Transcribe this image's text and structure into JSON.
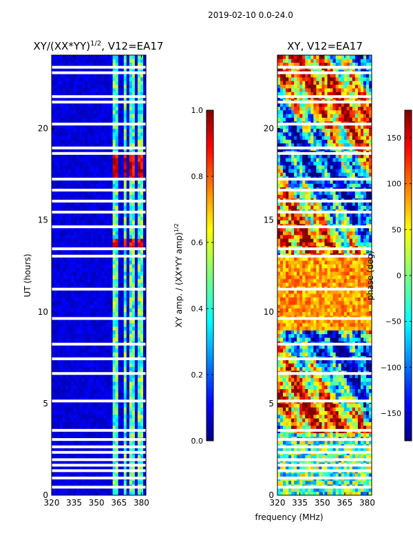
{
  "figure": {
    "suptitle": "2019-02-10 0.0-24.0"
  },
  "chart_data": [
    {
      "type": "heatmap",
      "title": "XY/(XX*YY)",
      "title_superscript": "1/2",
      "title_suffix": ", V12=EA17",
      "xlabel": "",
      "ylabel": "UT (hours)",
      "xlim": [
        320,
        383
      ],
      "ylim": [
        0,
        24
      ],
      "xticks": [
        320,
        335,
        350,
        365,
        380
      ],
      "yticks": [
        0,
        5,
        10,
        15,
        20
      ],
      "colorbar": {
        "label": "XY amp. / (XX*YY amp)",
        "label_superscript": "1/2",
        "range": [
          0.0,
          1.0
        ],
        "ticks": [
          "0.0",
          "0.2",
          "0.4",
          "0.6",
          "0.8",
          "1.0"
        ]
      },
      "flagged_hours": [
        0.4,
        0.9,
        1.3,
        1.6,
        1.9,
        2.3,
        2.6,
        3.0,
        3.5,
        5.1,
        6.6,
        7.4,
        8.2,
        9.6,
        11.2,
        13.0,
        13.4,
        14.6,
        15.4,
        16.0,
        16.6,
        17.2,
        18.6,
        18.9,
        20.2,
        21.4,
        21.7,
        23.0,
        23.3
      ],
      "rfi_bands_mhz": [
        [
          361,
          364
        ],
        [
          368,
          370
        ],
        [
          372,
          375
        ],
        [
          377,
          379
        ],
        [
          380,
          381.5
        ]
      ]
    },
    {
      "type": "heatmap",
      "title": "XY, V12=EA17",
      "xlabel": "frequency (MHz)",
      "ylabel": "",
      "xlim": [
        320,
        383
      ],
      "ylim": [
        0,
        24
      ],
      "xticks": [
        320,
        335,
        350,
        365,
        380
      ],
      "yticks": [
        0,
        5,
        10,
        15,
        20
      ],
      "colorbar": {
        "label": "phase (deg)",
        "range": [
          -180,
          180
        ],
        "ticks": [
          "150",
          "100",
          "50",
          "0",
          "−50",
          "−100",
          "−150"
        ]
      },
      "flagged_hours": [
        0.4,
        0.9,
        1.3,
        1.6,
        1.9,
        2.3,
        2.6,
        3.0,
        3.5,
        5.1,
        6.6,
        7.4,
        8.2,
        9.6,
        11.2,
        13.0,
        13.4,
        14.6,
        15.4,
        16.0,
        16.6,
        17.2,
        18.6,
        18.9,
        20.2,
        21.4,
        21.7,
        23.0,
        23.3
      ]
    }
  ],
  "colors": {
    "jet": [
      "#00007f",
      "#0000ff",
      "#007fff",
      "#00ffff",
      "#7fff7f",
      "#ffff00",
      "#ff7f00",
      "#ff0000",
      "#7f0000"
    ],
    "background": "#ffffff"
  }
}
